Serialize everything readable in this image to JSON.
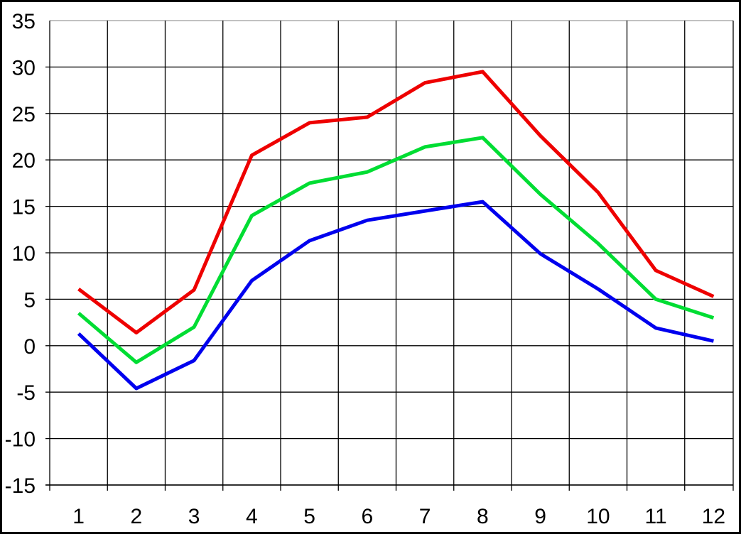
{
  "chart_data": {
    "type": "line",
    "title": "",
    "xlabel": "",
    "ylabel": "",
    "x_categories": [
      "1",
      "2",
      "3",
      "4",
      "5",
      "6",
      "7",
      "8",
      "9",
      "10",
      "11",
      "12"
    ],
    "y_ticks": [
      35,
      30,
      25,
      20,
      15,
      10,
      5,
      0,
      -5,
      -10,
      -15
    ],
    "ylim": [
      -15,
      35
    ],
    "grid": "on",
    "legend": "none",
    "series": [
      {
        "name": "red-line",
        "color": "#ee0000",
        "values": [
          6.1,
          1.4,
          6.0,
          20.5,
          24.0,
          24.6,
          28.3,
          29.5,
          22.6,
          16.5,
          8.1,
          5.3
        ]
      },
      {
        "name": "green-line",
        "color": "#00dd33",
        "values": [
          3.5,
          -1.8,
          2.0,
          14.0,
          17.5,
          18.7,
          21.4,
          22.4,
          16.3,
          11.0,
          5.0,
          3.0
        ]
      },
      {
        "name": "blue-line",
        "color": "#0000ee",
        "values": [
          1.3,
          -4.6,
          -1.6,
          7.0,
          11.3,
          13.5,
          14.5,
          15.5,
          9.9,
          6.1,
          1.9,
          0.5
        ]
      }
    ],
    "colors": {
      "background": "#ffffff",
      "border": "#000000",
      "gridline": "#000000",
      "top_gridline": "#9c9c9c",
      "tick_label": "#000000"
    }
  }
}
